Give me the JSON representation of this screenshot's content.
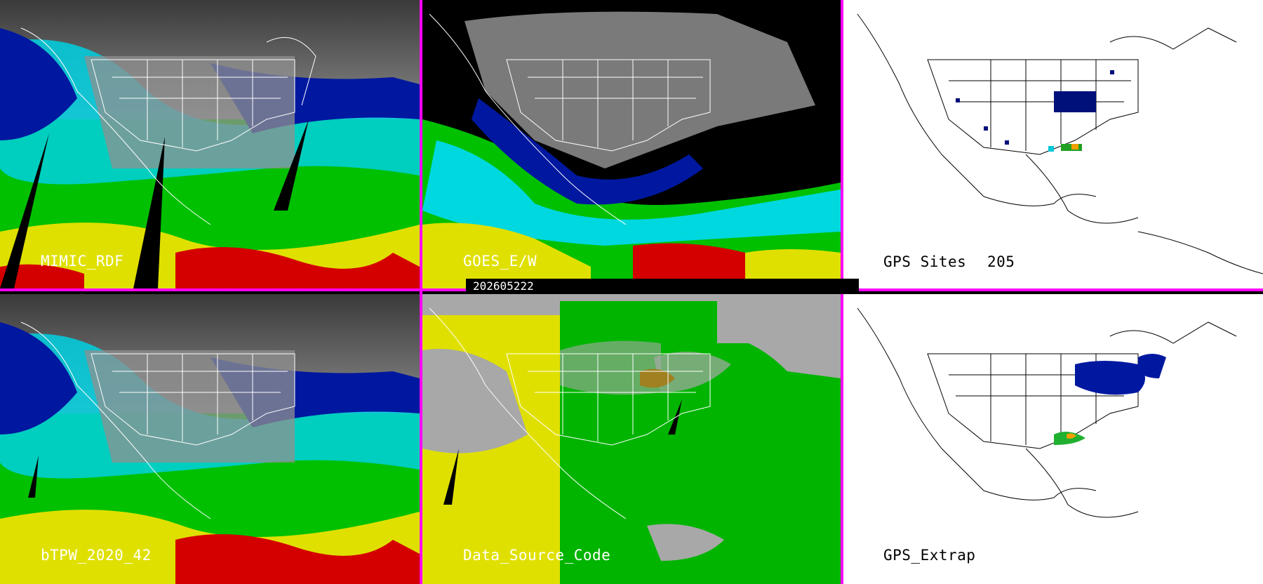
{
  "timestamp": "202605222",
  "panels": [
    {
      "id": "mimic",
      "label": "MIMIC_RDF",
      "type": "tpw-field"
    },
    {
      "id": "goes",
      "label": "GOES_E/W",
      "type": "tpw-field"
    },
    {
      "id": "gps",
      "label": "GPS Sites",
      "site_count": "205",
      "type": "site-map"
    },
    {
      "id": "btpw",
      "label": "bTPW_2020_42",
      "type": "tpw-field"
    },
    {
      "id": "dsc",
      "label": "Data_Source_Code",
      "type": "source-code"
    },
    {
      "id": "gpsx",
      "label": "GPS_Extrap",
      "type": "site-map"
    }
  ],
  "colors": {
    "divider": "#ff00ff",
    "moist_red": "#d40000",
    "yellow": "#e6e600",
    "green": "#00b400",
    "cyan": "#00e0e0",
    "blue": "#0010a0",
    "navy": "#001050",
    "gray_dry": "#a8a8a8",
    "source_gray": "#a8a8a8",
    "source_yellow": "#e0e000",
    "source_green": "#00b400"
  }
}
